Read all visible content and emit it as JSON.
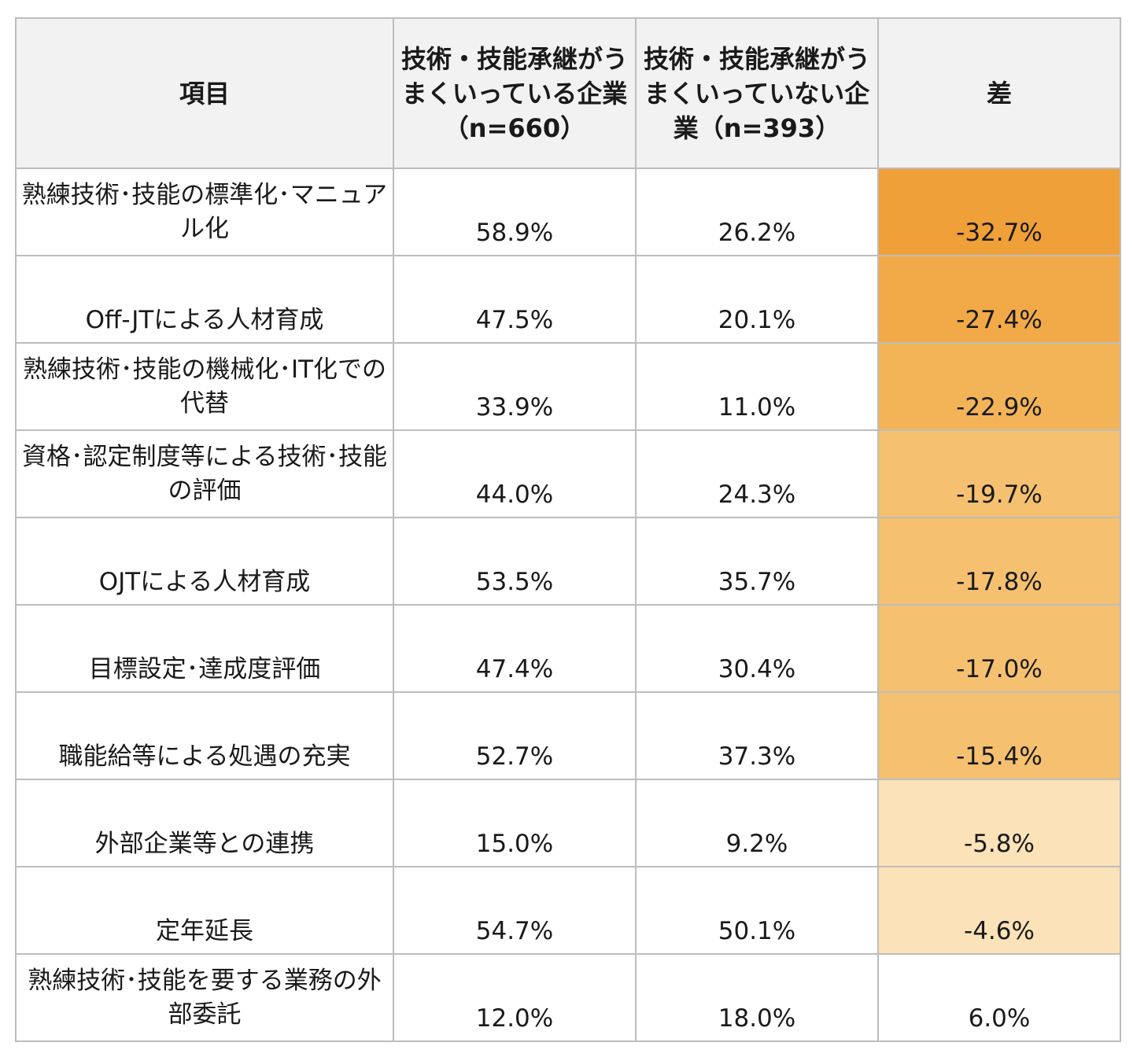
{
  "headers": {
    "item": "項目",
    "success": "技術・技能承継がうまくいっている企業（n=660）",
    "fail": "技術・技能承継がうまくいっていない企業（n=393）",
    "diff": "差"
  },
  "rows": [
    {
      "item": "熟練技術･技能の標準化･マニュアル化",
      "success": "58.9%",
      "fail": "26.2%",
      "diff": "-32.7%"
    },
    {
      "item": "Off-JTによる人材育成",
      "success": "47.5%",
      "fail": "20.1%",
      "diff": "-27.4%"
    },
    {
      "item": "熟練技術･技能の機械化･IT化での代替",
      "success": "33.9%",
      "fail": "11.0%",
      "diff": "-22.9%"
    },
    {
      "item": "資格･認定制度等による技術･技能の評価",
      "success": "44.0%",
      "fail": "24.3%",
      "diff": "-19.7%"
    },
    {
      "item": "OJTによる人材育成",
      "success": "53.5%",
      "fail": "35.7%",
      "diff": "-17.8%"
    },
    {
      "item": "目標設定･達成度評価",
      "success": "47.4%",
      "fail": "30.4%",
      "diff": "-17.0%"
    },
    {
      "item": "職能給等による処遇の充実",
      "success": "52.7%",
      "fail": "37.3%",
      "diff": "-15.4%"
    },
    {
      "item": "外部企業等との連携",
      "success": "15.0%",
      "fail": "9.2%",
      "diff": "-5.8%"
    },
    {
      "item": "定年延長",
      "success": "54.7%",
      "fail": "50.1%",
      "diff": "-4.6%"
    },
    {
      "item": "熟練技術･技能を要する業務の外部委託",
      "success": "12.0%",
      "fail": "18.0%",
      "diff": "6.0%"
    }
  ],
  "colors": {
    "diff_fills": [
      "#f0a038",
      "#f2aa48",
      "#f3b458",
      "#f5c070",
      "#f5c070",
      "#f5c070",
      "#f5c070",
      "#fbe2b8",
      "#fbe2b8",
      "#ffffff"
    ]
  }
}
